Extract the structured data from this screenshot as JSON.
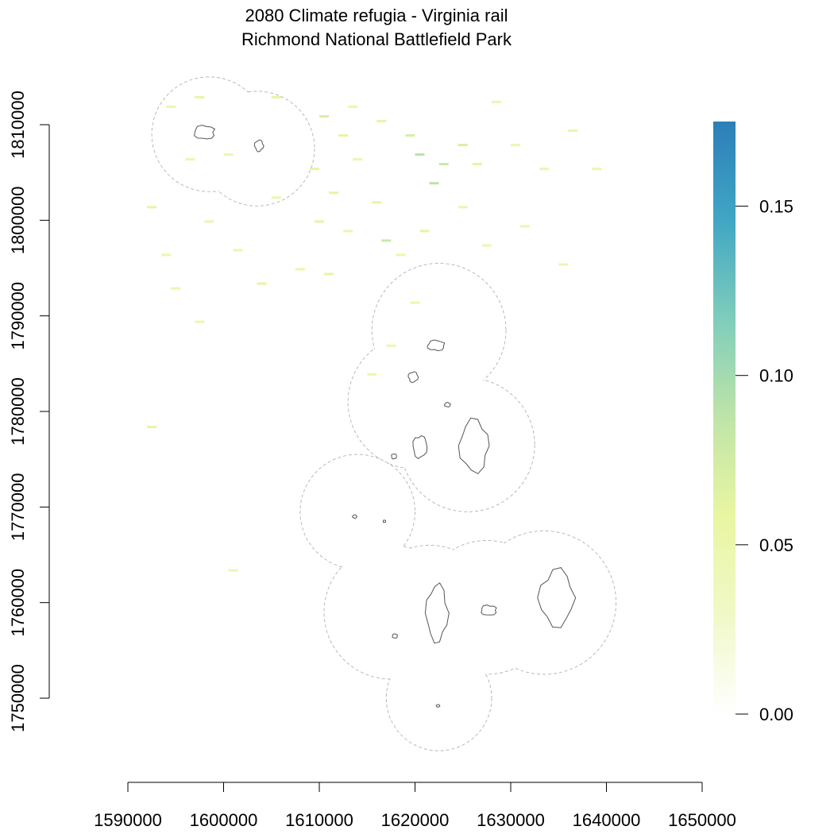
{
  "title": {
    "line1": "2080 Climate refugia - Virginia rail",
    "line2": "Richmond National Battlefield Park"
  },
  "chart_data": {
    "type": "heatmap",
    "x_ticks": [
      1590000,
      1600000,
      1610000,
      1620000,
      1630000,
      1640000,
      1650000
    ],
    "y_ticks": [
      1750000,
      1760000,
      1770000,
      1780000,
      1790000,
      1800000,
      1810000
    ],
    "x_tick_labels": [
      "1590000",
      "1600000",
      "1610000",
      "1620000",
      "1630000",
      "1640000",
      "1650000"
    ],
    "y_tick_labels": [
      "1750000",
      "1760000",
      "1770000",
      "1780000",
      "1790000",
      "1800000",
      "1810000"
    ],
    "xlim": [
      1590000,
      1650000
    ],
    "ylim": [
      1750000,
      1810000
    ],
    "colorbar": {
      "min": 0.0,
      "max": 0.175,
      "ticks": [
        0.0,
        0.05,
        0.1,
        0.15
      ],
      "tick_labels": [
        "0.00",
        "0.05",
        "0.10",
        "0.15"
      ],
      "colors": [
        "#ffffff",
        "#f1f8c8",
        "#e9f6a2",
        "#bfe4a8",
        "#7fcdbb",
        "#41a6c4",
        "#2c7fb8"
      ]
    },
    "buffer_circles": [
      {
        "x": 1598500,
        "y": 1809000,
        "r": 6000
      },
      {
        "x": 1603500,
        "y": 1807500,
        "r": 6000
      },
      {
        "x": 1622500,
        "y": 1788500,
        "r": 7000
      },
      {
        "x": 1620000,
        "y": 1781000,
        "r": 7000
      },
      {
        "x": 1625500,
        "y": 1776500,
        "r": 7000
      },
      {
        "x": 1614000,
        "y": 1769500,
        "r": 6000
      },
      {
        "x": 1617500,
        "y": 1759000,
        "r": 7000
      },
      {
        "x": 1621500,
        "y": 1759000,
        "r": 7000
      },
      {
        "x": 1627500,
        "y": 1759500,
        "r": 7000
      },
      {
        "x": 1633500,
        "y": 1760000,
        "r": 7500
      },
      {
        "x": 1622500,
        "y": 1750000,
        "r": 5500
      }
    ],
    "park_units": [
      {
        "x": 1598000,
        "y": 1809200,
        "w": 2400,
        "h": 1600
      },
      {
        "x": 1603700,
        "y": 1807800,
        "w": 1000,
        "h": 1300
      },
      {
        "x": 1622200,
        "y": 1786900,
        "w": 2000,
        "h": 1200
      },
      {
        "x": 1619800,
        "y": 1783600,
        "w": 1100,
        "h": 1200
      },
      {
        "x": 1623400,
        "y": 1780700,
        "w": 700,
        "h": 500
      },
      {
        "x": 1620500,
        "y": 1776300,
        "w": 1600,
        "h": 2600
      },
      {
        "x": 1626200,
        "y": 1776400,
        "w": 3400,
        "h": 6000
      },
      {
        "x": 1617800,
        "y": 1775300,
        "w": 600,
        "h": 600
      },
      {
        "x": 1613700,
        "y": 1769000,
        "w": 500,
        "h": 400
      },
      {
        "x": 1616800,
        "y": 1768500,
        "w": 300,
        "h": 300
      },
      {
        "x": 1634800,
        "y": 1760500,
        "w": 4000,
        "h": 6500
      },
      {
        "x": 1627700,
        "y": 1759200,
        "w": 1800,
        "h": 1200
      },
      {
        "x": 1622300,
        "y": 1758900,
        "w": 2500,
        "h": 6500
      },
      {
        "x": 1617900,
        "y": 1756500,
        "w": 600,
        "h": 500
      },
      {
        "x": 1622400,
        "y": 1749200,
        "w": 400,
        "h": 300
      }
    ],
    "refugia_cells": [
      {
        "x": 1594000,
        "y": 1812000,
        "v": 0.05
      },
      {
        "x": 1597000,
        "y": 1813000,
        "v": 0.06
      },
      {
        "x": 1605000,
        "y": 1813000,
        "v": 0.06
      },
      {
        "x": 1610000,
        "y": 1811000,
        "v": 0.07
      },
      {
        "x": 1613000,
        "y": 1812000,
        "v": 0.05
      },
      {
        "x": 1616000,
        "y": 1810500,
        "v": 0.06
      },
      {
        "x": 1619000,
        "y": 1809000,
        "v": 0.07
      },
      {
        "x": 1620000,
        "y": 1807000,
        "v": 0.09
      },
      {
        "x": 1622500,
        "y": 1806000,
        "v": 0.08
      },
      {
        "x": 1624500,
        "y": 1808000,
        "v": 0.07
      },
      {
        "x": 1621500,
        "y": 1804000,
        "v": 0.09
      },
      {
        "x": 1626000,
        "y": 1806000,
        "v": 0.06
      },
      {
        "x": 1628000,
        "y": 1812500,
        "v": 0.05
      },
      {
        "x": 1630000,
        "y": 1808000,
        "v": 0.05
      },
      {
        "x": 1633000,
        "y": 1805500,
        "v": 0.05
      },
      {
        "x": 1636000,
        "y": 1809500,
        "v": 0.05
      },
      {
        "x": 1638500,
        "y": 1805500,
        "v": 0.05
      },
      {
        "x": 1609000,
        "y": 1805500,
        "v": 0.06
      },
      {
        "x": 1611000,
        "y": 1803000,
        "v": 0.06
      },
      {
        "x": 1613500,
        "y": 1806500,
        "v": 0.05
      },
      {
        "x": 1615500,
        "y": 1802000,
        "v": 0.06
      },
      {
        "x": 1616500,
        "y": 1798000,
        "v": 0.08
      },
      {
        "x": 1612500,
        "y": 1799000,
        "v": 0.05
      },
      {
        "x": 1609500,
        "y": 1800000,
        "v": 0.06
      },
      {
        "x": 1605000,
        "y": 1802500,
        "v": 0.05
      },
      {
        "x": 1603500,
        "y": 1793500,
        "v": 0.06
      },
      {
        "x": 1601000,
        "y": 1797000,
        "v": 0.05
      },
      {
        "x": 1598000,
        "y": 1800000,
        "v": 0.05
      },
      {
        "x": 1592000,
        "y": 1801500,
        "v": 0.06
      },
      {
        "x": 1593500,
        "y": 1796500,
        "v": 0.05
      },
      {
        "x": 1594500,
        "y": 1793000,
        "v": 0.05
      },
      {
        "x": 1607500,
        "y": 1795000,
        "v": 0.05
      },
      {
        "x": 1610500,
        "y": 1794500,
        "v": 0.06
      },
      {
        "x": 1618000,
        "y": 1796500,
        "v": 0.05
      },
      {
        "x": 1620500,
        "y": 1799000,
        "v": 0.06
      },
      {
        "x": 1624500,
        "y": 1801500,
        "v": 0.05
      },
      {
        "x": 1627000,
        "y": 1797500,
        "v": 0.05
      },
      {
        "x": 1631000,
        "y": 1799500,
        "v": 0.05
      },
      {
        "x": 1635000,
        "y": 1795500,
        "v": 0.05
      },
      {
        "x": 1600000,
        "y": 1807000,
        "v": 0.05
      },
      {
        "x": 1596000,
        "y": 1806500,
        "v": 0.05
      },
      {
        "x": 1612000,
        "y": 1809000,
        "v": 0.06
      },
      {
        "x": 1592000,
        "y": 1778500,
        "v": 0.06
      },
      {
        "x": 1600500,
        "y": 1763500,
        "v": 0.05
      },
      {
        "x": 1615000,
        "y": 1784000,
        "v": 0.05
      },
      {
        "x": 1617000,
        "y": 1787000,
        "v": 0.05
      },
      {
        "x": 1597000,
        "y": 1789500,
        "v": 0.05
      },
      {
        "x": 1619500,
        "y": 1791500,
        "v": 0.05
      }
    ]
  }
}
